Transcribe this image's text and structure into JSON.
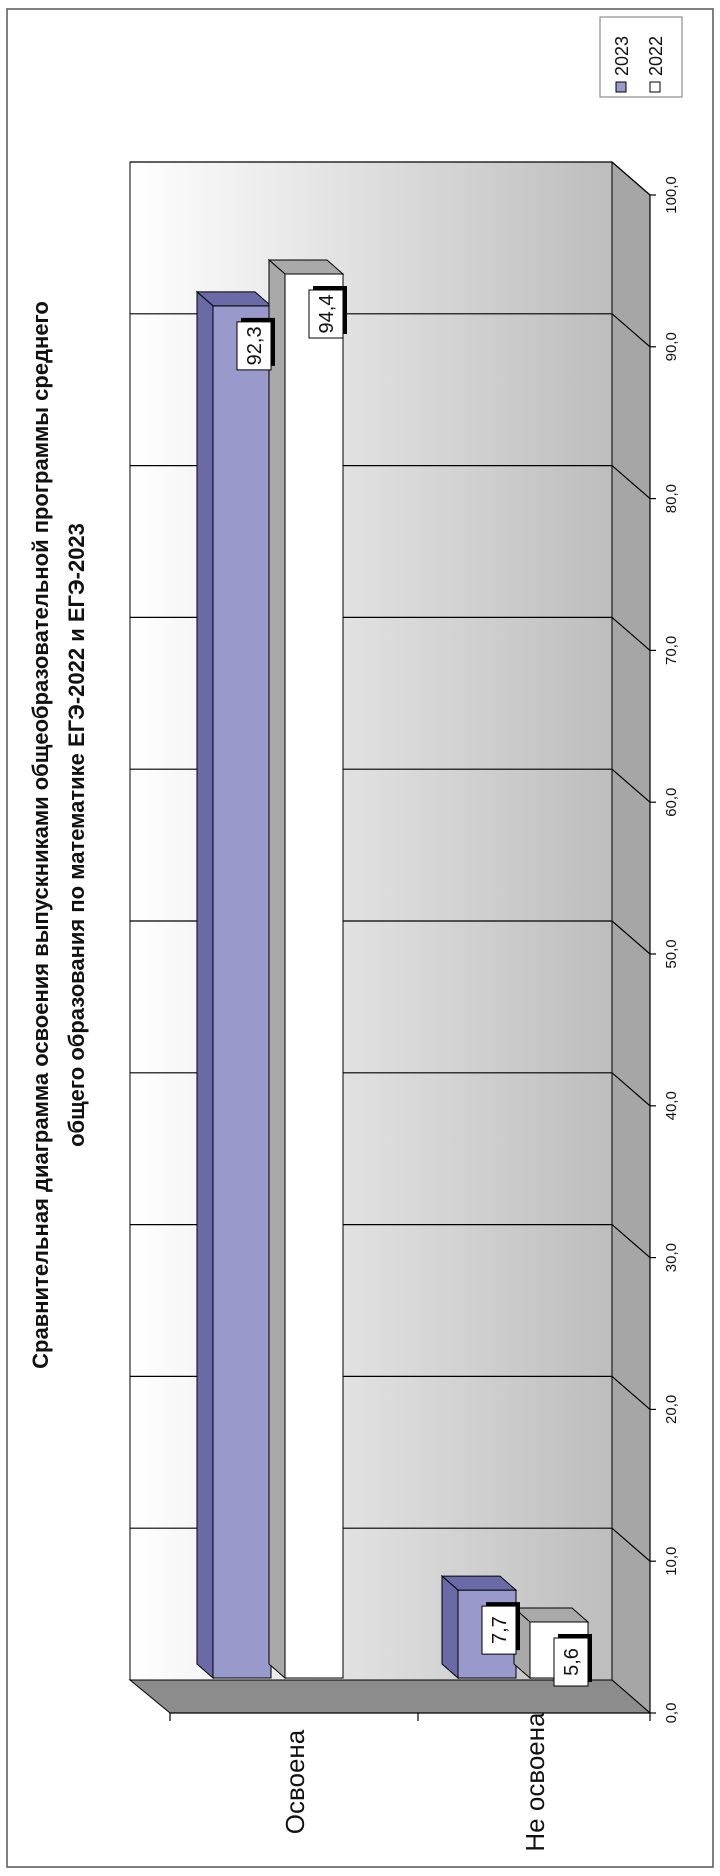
{
  "chart_data": {
    "type": "bar",
    "orientation": "horizontal-3d",
    "title_lines": [
      "Сравнительная диаграмма освоения выпускниками общеобразовательной программы среднего",
      "общего образования по математике ЕГЭ-2022 и ЕГЭ-2023"
    ],
    "categories": [
      "Освоена",
      "Не освоена"
    ],
    "series": [
      {
        "name": "2023",
        "values": [
          92.3,
          7.7
        ],
        "labels": [
          "92,3",
          "7,7"
        ],
        "color": "#9999cc"
      },
      {
        "name": "2022",
        "values": [
          94.4,
          5.6
        ],
        "labels": [
          "94,4",
          "5,6"
        ],
        "color": "#ffffff"
      }
    ],
    "value_axis": {
      "min": 0,
      "max": 100,
      "step": 10,
      "tick_labels": [
        "0,0",
        "10,0",
        "20,0",
        "30,0",
        "40,0",
        "50,0",
        "60,0",
        "70,0",
        "80,0",
        "90,0",
        "100,0"
      ]
    },
    "grid": true,
    "legend_position": "top-right",
    "colors": {
      "floor": "#8c8c8c",
      "side_wall": "#a6a6a6",
      "border": "#000000"
    }
  }
}
